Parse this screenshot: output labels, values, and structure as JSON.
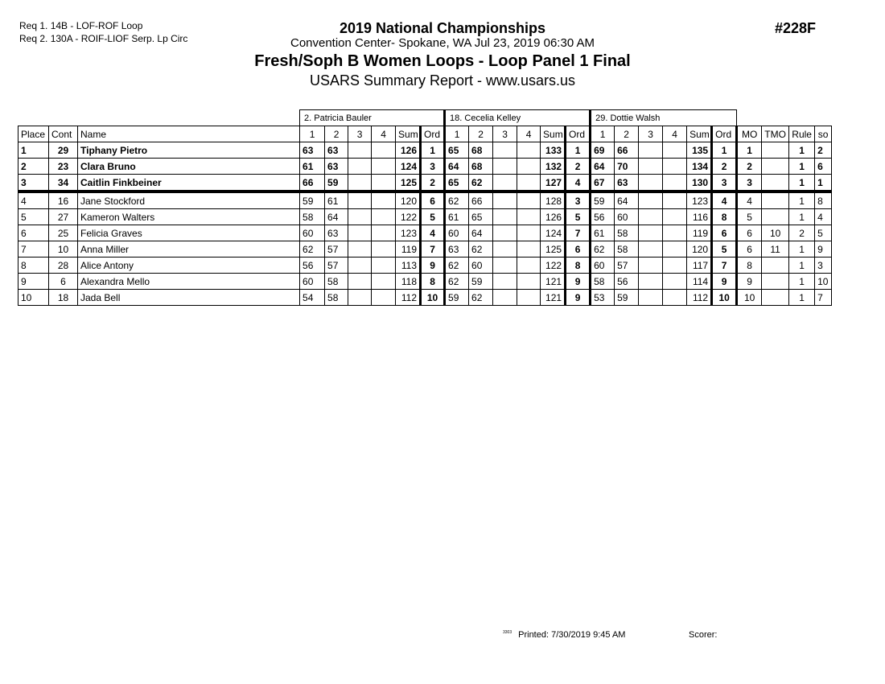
{
  "requirements": [
    "Req  1.  14B - LOF-ROF Loop",
    "Req  2.  130A - ROIF-LIOF Serp. Lp Circ"
  ],
  "header": {
    "title": "2019 National Championships",
    "venue": "Convention Center- Spokane, WA  Jul 23, 2019  06:30 AM",
    "event": "Fresh/Soph B Women Loops - Loop Panel 1 Final",
    "report": "USARS Summary Report - www.usars.us",
    "event_number": "#228F"
  },
  "judges": [
    "2.  Patricia Bauler",
    "18.  Cecelia Kelley",
    "29.  Dottie Walsh"
  ],
  "columns": {
    "place": "Place",
    "cont": "Cont",
    "name": "Name",
    "judge_cols": [
      "1",
      "2",
      "3",
      "4",
      "Sum",
      "Ord"
    ],
    "mo": "MO",
    "tmo": "TMO",
    "rule": "Rule",
    "so": "so"
  },
  "rows": [
    {
      "place": "1",
      "cont": "29",
      "name": "Tiphany Pietro",
      "bold": true,
      "j": [
        [
          "63",
          "63",
          "",
          "",
          "126",
          "1"
        ],
        [
          "65",
          "68",
          "",
          "",
          "133",
          "1"
        ],
        [
          "69",
          "66",
          "",
          "",
          "135",
          "1"
        ]
      ],
      "mo": "1",
      "tmo": "",
      "rule": "1",
      "so": "2"
    },
    {
      "place": "2",
      "cont": "23",
      "name": "Clara Bruno",
      "bold": true,
      "j": [
        [
          "61",
          "63",
          "",
          "",
          "124",
          "3"
        ],
        [
          "64",
          "68",
          "",
          "",
          "132",
          "2"
        ],
        [
          "64",
          "70",
          "",
          "",
          "134",
          "2"
        ]
      ],
      "mo": "2",
      "tmo": "",
      "rule": "1",
      "so": "6"
    },
    {
      "place": "3",
      "cont": "34",
      "name": "Caitlin Finkbeiner",
      "bold": true,
      "j": [
        [
          "66",
          "59",
          "",
          "",
          "125",
          "2"
        ],
        [
          "65",
          "62",
          "",
          "",
          "127",
          "4"
        ],
        [
          "67",
          "63",
          "",
          "",
          "130",
          "3"
        ]
      ],
      "mo": "3",
      "tmo": "",
      "rule": "1",
      "so": "1"
    },
    {
      "place": "4",
      "cont": "16",
      "name": "Jane Stockford",
      "bold": false,
      "j": [
        [
          "59",
          "61",
          "",
          "",
          "120",
          "6"
        ],
        [
          "62",
          "66",
          "",
          "",
          "128",
          "3"
        ],
        [
          "59",
          "64",
          "",
          "",
          "123",
          "4"
        ]
      ],
      "mo": "4",
      "tmo": "",
      "rule": "1",
      "so": "8"
    },
    {
      "place": "5",
      "cont": "27",
      "name": "Kameron Walters",
      "bold": false,
      "j": [
        [
          "58",
          "64",
          "",
          "",
          "122",
          "5"
        ],
        [
          "61",
          "65",
          "",
          "",
          "126",
          "5"
        ],
        [
          "56",
          "60",
          "",
          "",
          "116",
          "8"
        ]
      ],
      "mo": "5",
      "tmo": "",
      "rule": "1",
      "so": "4"
    },
    {
      "place": "6",
      "cont": "25",
      "name": "Felicia Graves",
      "bold": false,
      "j": [
        [
          "60",
          "63",
          "",
          "",
          "123",
          "4"
        ],
        [
          "60",
          "64",
          "",
          "",
          "124",
          "7"
        ],
        [
          "61",
          "58",
          "",
          "",
          "119",
          "6"
        ]
      ],
      "mo": "6",
      "tmo": "10",
      "rule": "2",
      "so": "5"
    },
    {
      "place": "7",
      "cont": "10",
      "name": "Anna Miller",
      "bold": false,
      "j": [
        [
          "62",
          "57",
          "",
          "",
          "119",
          "7"
        ],
        [
          "63",
          "62",
          "",
          "",
          "125",
          "6"
        ],
        [
          "62",
          "58",
          "",
          "",
          "120",
          "5"
        ]
      ],
      "mo": "6",
      "tmo": "11",
      "rule": "1",
      "so": "9"
    },
    {
      "place": "8",
      "cont": "28",
      "name": "Alice Antony",
      "bold": false,
      "j": [
        [
          "56",
          "57",
          "",
          "",
          "113",
          "9"
        ],
        [
          "62",
          "60",
          "",
          "",
          "122",
          "8"
        ],
        [
          "60",
          "57",
          "",
          "",
          "117",
          "7"
        ]
      ],
      "mo": "8",
      "tmo": "",
      "rule": "1",
      "so": "3"
    },
    {
      "place": "9",
      "cont": "6",
      "name": "Alexandra Mello",
      "bold": false,
      "j": [
        [
          "60",
          "58",
          "",
          "",
          "118",
          "8"
        ],
        [
          "62",
          "59",
          "",
          "",
          "121",
          "9"
        ],
        [
          "58",
          "56",
          "",
          "",
          "114",
          "9"
        ]
      ],
      "mo": "9",
      "tmo": "",
      "rule": "1",
      "so": "10"
    },
    {
      "place": "10",
      "cont": "18",
      "name": "Jada Bell",
      "bold": false,
      "j": [
        [
          "54",
          "58",
          "",
          "",
          "112",
          "10"
        ],
        [
          "59",
          "62",
          "",
          "",
          "121",
          "9"
        ],
        [
          "53",
          "59",
          "",
          "",
          "112",
          "10"
        ]
      ],
      "mo": "10",
      "tmo": "",
      "rule": "1",
      "so": "7"
    }
  ],
  "footer": {
    "code": "3303",
    "printed": "Printed:  7/30/2019  9:45 AM",
    "scorer": "Scorer:"
  }
}
